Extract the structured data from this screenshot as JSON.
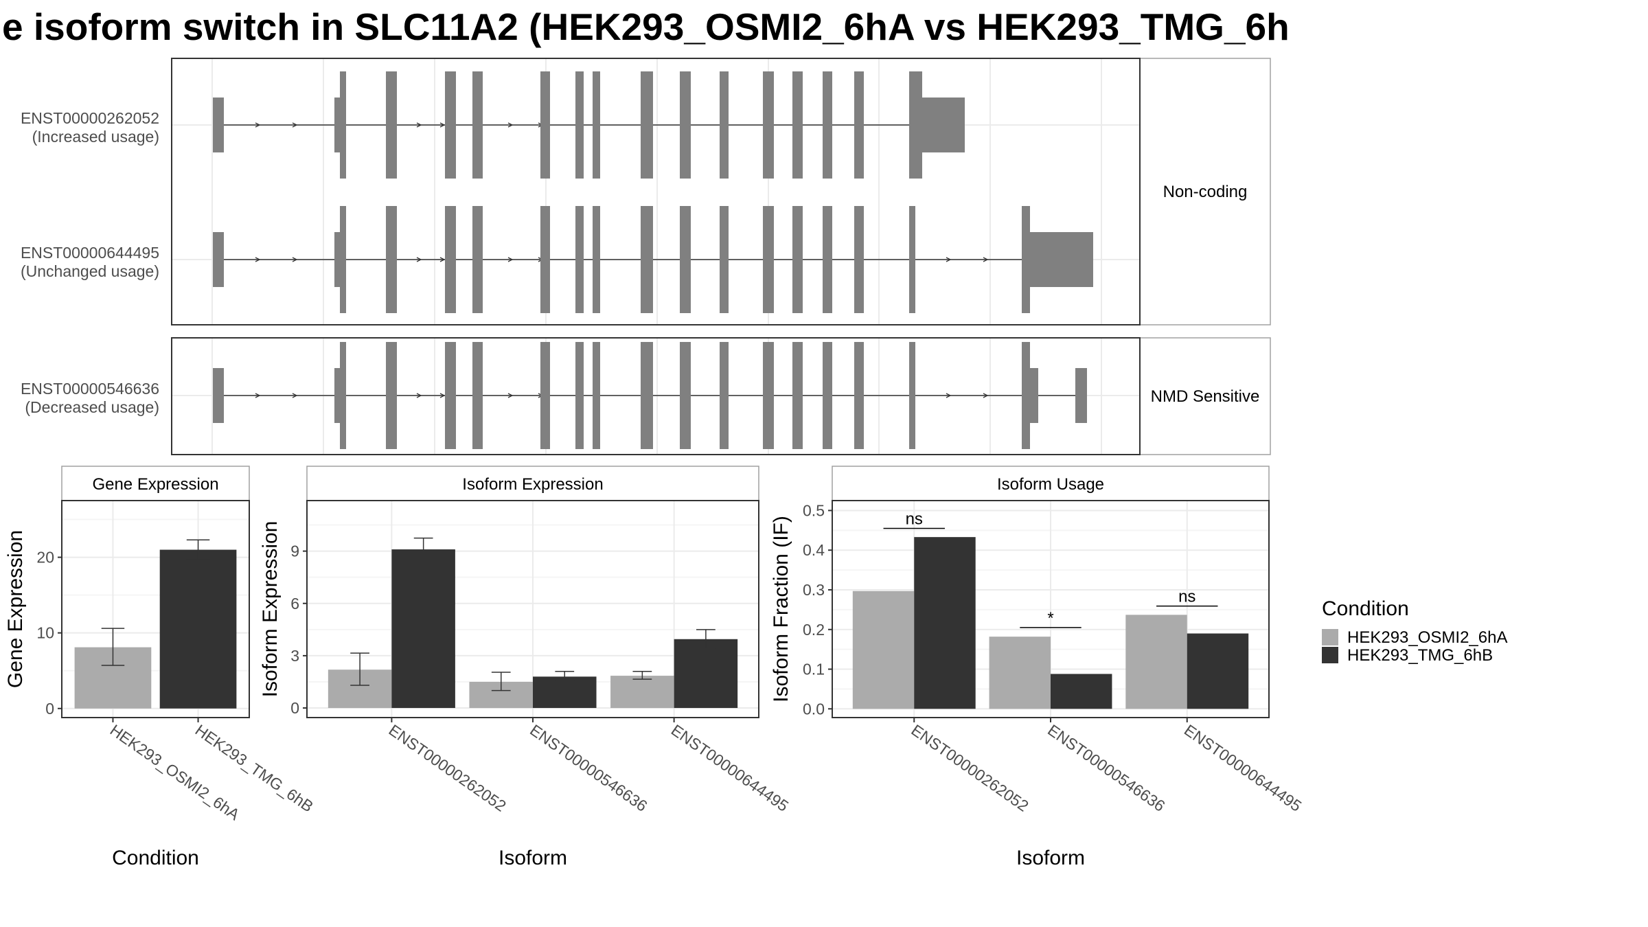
{
  "title": "e isoform switch in SLC11A2 (HEK293_OSMI2_6hA vs HEK293_TMG_6h",
  "colors": {
    "cond_a": "#ababab",
    "cond_b": "#333333",
    "exon": "#808080",
    "intron": "#333333",
    "panel_border": "#333333",
    "strip_border": "#a0a0a0",
    "grid_major": "#ebebeb",
    "grid_minor": "#f5f5f5",
    "text_dark": "#000000",
    "text_axis": "#4d4d4d"
  },
  "transcript_panel": {
    "groups": [
      {
        "label": "Non-coding",
        "isoforms": [
          {
            "id": "ENST00000262052",
            "usage": "(Increased usage)"
          },
          {
            "id": "ENST00000644495",
            "usage": "(Unchanged usage)"
          }
        ]
      },
      {
        "label": "NMD Sensitive",
        "isoforms": [
          {
            "id": "ENST00000546636",
            "usage": "(Decreased usage)"
          }
        ]
      }
    ]
  },
  "legend": {
    "title": "Condition",
    "items": [
      "HEK293_OSMI2_6hA",
      "HEK293_TMG_6hB"
    ]
  },
  "chart_data": [
    {
      "type": "bar",
      "strip": "Gene Expression",
      "xlabel": "Condition",
      "ylabel": "Gene Expression",
      "categories": [
        "HEK293_OSMI2_6hA",
        "HEK293_TMG_6hB"
      ],
      "values": [
        8.1,
        21.0
      ],
      "errors": [
        [
          5.7,
          10.6
        ],
        [
          19.7,
          22.3
        ]
      ],
      "yticks": [
        0,
        10,
        20
      ],
      "ylim": [
        -1.2,
        27.5
      ],
      "grid": true
    },
    {
      "type": "bar",
      "strip": "Isoform Expression",
      "xlabel": "Isoform",
      "ylabel": "Isoform Expression",
      "categories": [
        "ENST00000262052",
        "ENST00000546636",
        "ENST00000644495"
      ],
      "series": [
        {
          "name": "HEK293_OSMI2_6hA",
          "values": [
            2.2,
            1.5,
            1.85
          ],
          "errors": [
            [
              1.3,
              3.15
            ],
            [
              1.0,
              2.05
            ],
            [
              1.65,
              2.1
            ]
          ]
        },
        {
          "name": "HEK293_TMG_6hB",
          "values": [
            9.1,
            1.8,
            3.95
          ],
          "errors": [
            [
              8.5,
              9.75
            ],
            [
              1.55,
              2.1
            ],
            [
              3.4,
              4.5
            ]
          ]
        }
      ],
      "yticks": [
        0,
        3,
        6,
        9
      ],
      "ylim": [
        -0.55,
        11.9
      ],
      "grid": true
    },
    {
      "type": "bar",
      "strip": "Isoform Usage",
      "xlabel": "Isoform",
      "ylabel": "Isoform Fraction (IF)",
      "categories": [
        "ENST00000262052",
        "ENST00000546636",
        "ENST00000644495"
      ],
      "series": [
        {
          "name": "HEK293_OSMI2_6hA",
          "values": [
            0.297,
            0.182,
            0.237
          ]
        },
        {
          "name": "HEK293_TMG_6hB",
          "values": [
            0.433,
            0.088,
            0.19
          ]
        }
      ],
      "annotations": [
        {
          "category": "ENST00000262052",
          "label": "ns",
          "y": 0.455
        },
        {
          "category": "ENST00000546636",
          "label": "*",
          "y": 0.205
        },
        {
          "category": "ENST00000644495",
          "label": "ns",
          "y": 0.259
        }
      ],
      "yticks": [
        0.0,
        0.1,
        0.2,
        0.3,
        0.4,
        0.5
      ],
      "ytick_labels": [
        "0.0",
        "0.1",
        "0.2",
        "0.3",
        "0.4",
        "0.5"
      ],
      "ylim": [
        -0.022,
        0.525
      ],
      "grid": true
    }
  ]
}
